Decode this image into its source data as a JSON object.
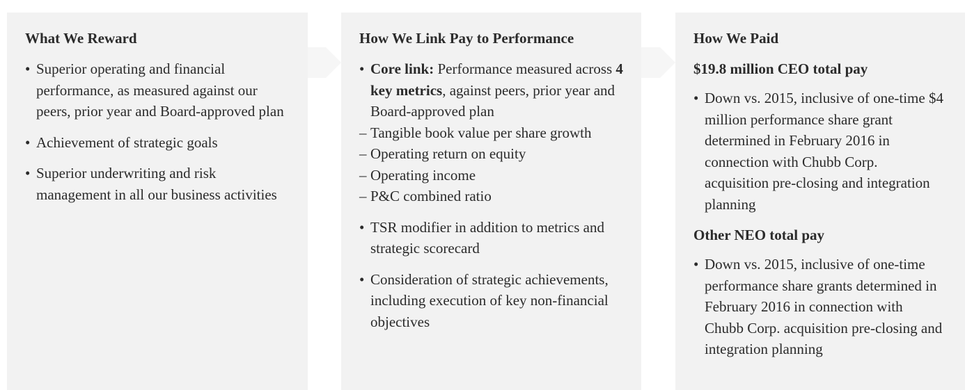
{
  "columns": [
    {
      "title": "What We Reward",
      "bullets": [
        "Superior operating and financial performance, as measured against our peers, prior year and Board-approved plan",
        "Achievement of strategic goals",
        "Superior underwriting and risk management in all our business activities"
      ]
    },
    {
      "title": "How We Link Pay to Performance",
      "core": {
        "lead": "Core link:",
        "text1": "Performance measured across",
        "bold": "4 key metrics",
        "text2": ", against peers, prior year and Board-approved plan",
        "metrics": [
          "Tangible book value per share growth",
          "Operating return on equity",
          "Operating income",
          "P&C combined ratio"
        ]
      },
      "bullets": [
        "TSR modifier in addition to metrics and strategic scorecard",
        "Consideration of strategic achievements, including execution of key non-financial objectives"
      ]
    },
    {
      "title": "How We Paid",
      "sections": [
        {
          "heading": "$19.8 million CEO total pay",
          "bullet": "Down vs. 2015, inclusive of one-time $4 million performance share grant determined in February 2016 in connection with Chubb Corp. acquisition pre-closing and integration planning"
        },
        {
          "heading": "Other NEO total pay",
          "bullet": "Down vs. 2015, inclusive of one-time performance share grants determined in February 2016 in connection with Chubb Corp. acquisition pre-closing and integration planning"
        }
      ]
    }
  ]
}
